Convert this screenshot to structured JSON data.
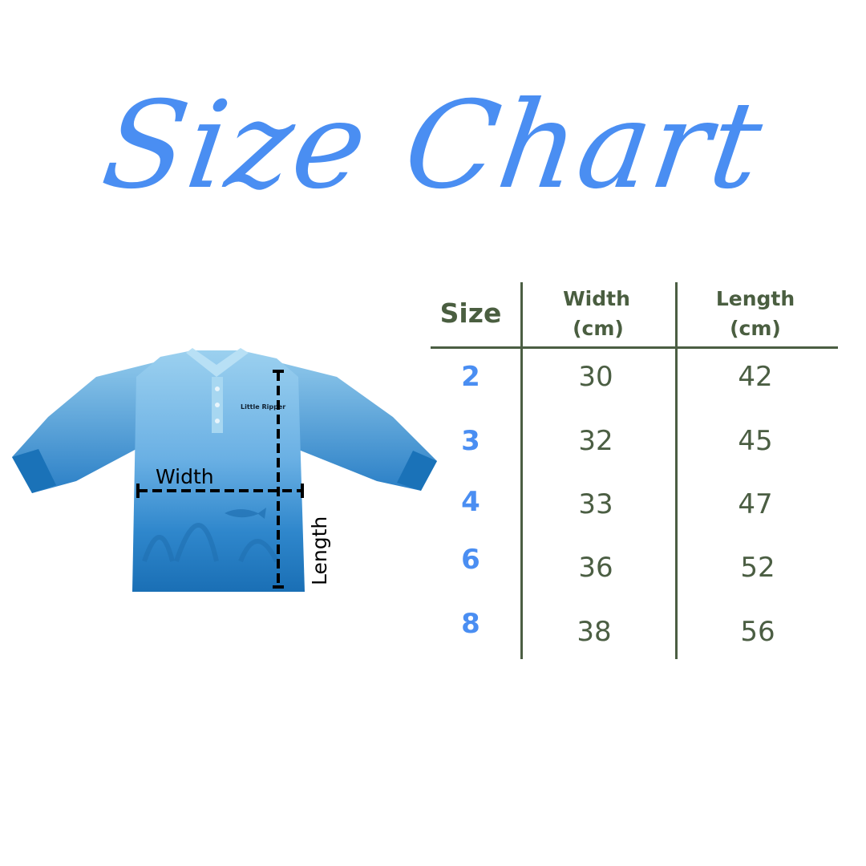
{
  "title": "Size Chart",
  "image": {
    "logo_text": "Little Ripper",
    "width_label": "Width",
    "length_label": "Length",
    "colors": {
      "shirt_light": "#8ec8ec",
      "shirt_dark": "#1a72b8",
      "measure_line": "#000000"
    }
  },
  "table": {
    "headers": {
      "size": "Size",
      "width_line1": "Width",
      "width_line2": "(cm)",
      "length_line1": "Length",
      "length_line2": "(cm)"
    },
    "rows": [
      {
        "size": "2",
        "width": "30",
        "length": "42"
      },
      {
        "size": "3",
        "width": "32",
        "length": "45"
      },
      {
        "size": "4",
        "width": "33",
        "length": "47"
      },
      {
        "size": "6",
        "width": "36",
        "length": "52"
      },
      {
        "size": "8",
        "width": "38",
        "length": "56"
      }
    ],
    "colors": {
      "header": "#4a5e40",
      "size": "#4a8ef2",
      "value": "#4b5e43",
      "title": "#4a8ef2"
    }
  }
}
